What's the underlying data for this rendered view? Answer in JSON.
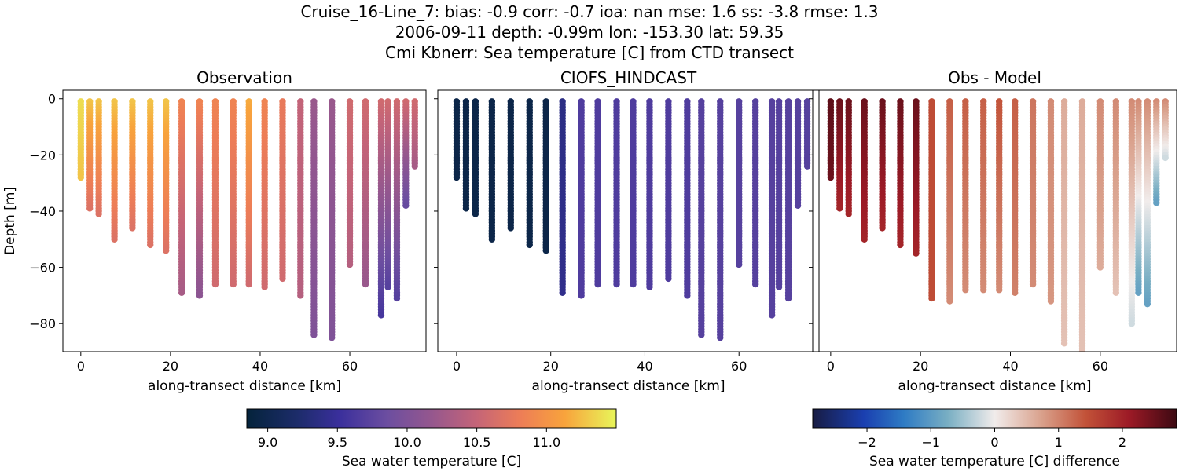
{
  "header": {
    "line1": "Cruise_16-Line_7: bias: -0.9  corr: -0.7  ioa: nan  mse: 1.6  ss: -3.8  rmse: 1.3",
    "line2": "2006-09-11 depth: -0.99m lon: -153.30 lat: 59.35",
    "line3": "Cmi Kbnerr: Sea temperature [C] from CTD transect"
  },
  "chart_data": [
    {
      "type": "scatter",
      "title": "Observation",
      "xlabel": "along-transect distance [km]",
      "ylabel": "Depth [m]",
      "xlim": [
        -4,
        77
      ],
      "ylim": [
        -90,
        3
      ],
      "xticks": [
        0,
        20,
        40,
        60
      ],
      "yticks": [
        0,
        -20,
        -40,
        -60,
        -80
      ],
      "colormap": "thermal",
      "color_range": [
        8.85,
        11.5
      ],
      "stations": [
        {
          "x": 0.0,
          "max_depth": -28,
          "t_top": 11.4,
          "t_bot": 11.3
        },
        {
          "x": 2.0,
          "max_depth": -39,
          "t_top": 11.3,
          "t_bot": 10.7
        },
        {
          "x": 4.0,
          "max_depth": -41,
          "t_top": 11.3,
          "t_bot": 10.7
        },
        {
          "x": 7.5,
          "max_depth": -50,
          "t_top": 11.3,
          "t_bot": 10.7
        },
        {
          "x": 11.5,
          "max_depth": -46,
          "t_top": 11.3,
          "t_bot": 10.7
        },
        {
          "x": 15.5,
          "max_depth": -52,
          "t_top": 11.3,
          "t_bot": 10.7
        },
        {
          "x": 19.0,
          "max_depth": -54,
          "t_top": 11.3,
          "t_bot": 10.7
        },
        {
          "x": 22.5,
          "max_depth": -69,
          "t_top": 10.9,
          "t_bot": 10.3
        },
        {
          "x": 26.5,
          "max_depth": -70,
          "t_top": 10.9,
          "t_bot": 10.1
        },
        {
          "x": 30.0,
          "max_depth": -66,
          "t_top": 10.9,
          "t_bot": 10.6
        },
        {
          "x": 34.0,
          "max_depth": -66,
          "t_top": 10.9,
          "t_bot": 10.6
        },
        {
          "x": 37.5,
          "max_depth": -66,
          "t_top": 11.2,
          "t_bot": 10.6
        },
        {
          "x": 41.0,
          "max_depth": -67,
          "t_top": 10.9,
          "t_bot": 10.6
        },
        {
          "x": 45.0,
          "max_depth": -64,
          "t_top": 10.8,
          "t_bot": 10.6
        },
        {
          "x": 49.0,
          "max_depth": -70,
          "t_top": 10.5,
          "t_bot": 10.4
        },
        {
          "x": 52.0,
          "max_depth": -84,
          "t_top": 10.2,
          "t_bot": 10.0
        },
        {
          "x": 56.0,
          "max_depth": -85,
          "t_top": 10.2,
          "t_bot": 10.0
        },
        {
          "x": 60.0,
          "max_depth": -59,
          "t_top": 10.6,
          "t_bot": 10.4
        },
        {
          "x": 63.5,
          "max_depth": -66,
          "t_top": 10.6,
          "t_bot": 10.2
        },
        {
          "x": 67.0,
          "max_depth": -77,
          "t_top": 10.6,
          "t_bot": 9.6
        },
        {
          "x": 68.5,
          "max_depth": -67,
          "t_top": 10.6,
          "t_bot": 9.7
        },
        {
          "x": 70.5,
          "max_depth": -71,
          "t_top": 10.6,
          "t_bot": 9.7
        },
        {
          "x": 72.5,
          "max_depth": -38,
          "t_top": 10.6,
          "t_bot": 9.8
        },
        {
          "x": 74.5,
          "max_depth": -24,
          "t_top": 10.6,
          "t_bot": 10.3
        }
      ]
    },
    {
      "type": "scatter",
      "title": "CIOFS_HINDCAST",
      "xlabel": "along-transect distance [km]",
      "xlim": [
        -4,
        77
      ],
      "ylim": [
        -90,
        3
      ],
      "xticks": [
        0,
        20,
        40,
        60
      ],
      "colormap": "thermal",
      "color_range": [
        8.85,
        11.5
      ],
      "stations": [
        {
          "x": 0.0,
          "max_depth": -28,
          "t_top": 8.95,
          "t_bot": 8.95
        },
        {
          "x": 2.0,
          "max_depth": -39,
          "t_top": 8.95,
          "t_bot": 8.95
        },
        {
          "x": 4.0,
          "max_depth": -41,
          "t_top": 8.95,
          "t_bot": 8.95
        },
        {
          "x": 7.5,
          "max_depth": -50,
          "t_top": 8.95,
          "t_bot": 8.95
        },
        {
          "x": 11.5,
          "max_depth": -46,
          "t_top": 8.95,
          "t_bot": 8.95
        },
        {
          "x": 15.5,
          "max_depth": -52,
          "t_top": 8.95,
          "t_bot": 8.95
        },
        {
          "x": 19.0,
          "max_depth": -54,
          "t_top": 8.95,
          "t_bot": 8.95
        },
        {
          "x": 22.5,
          "max_depth": -69,
          "t_top": 9.35,
          "t_bot": 9.4
        },
        {
          "x": 26.5,
          "max_depth": -70,
          "t_top": 9.65,
          "t_bot": 9.65
        },
        {
          "x": 30.0,
          "max_depth": -66,
          "t_top": 9.65,
          "t_bot": 9.65
        },
        {
          "x": 34.0,
          "max_depth": -66,
          "t_top": 9.65,
          "t_bot": 9.65
        },
        {
          "x": 37.5,
          "max_depth": -66,
          "t_top": 9.65,
          "t_bot": 9.65
        },
        {
          "x": 41.0,
          "max_depth": -67,
          "t_top": 9.65,
          "t_bot": 9.65
        },
        {
          "x": 45.0,
          "max_depth": -64,
          "t_top": 9.65,
          "t_bot": 9.65
        },
        {
          "x": 49.0,
          "max_depth": -70,
          "t_top": 9.65,
          "t_bot": 9.65
        },
        {
          "x": 52.0,
          "max_depth": -84,
          "t_top": 9.7,
          "t_bot": 9.7
        },
        {
          "x": 56.0,
          "max_depth": -85,
          "t_top": 9.7,
          "t_bot": 9.7
        },
        {
          "x": 60.0,
          "max_depth": -59,
          "t_top": 9.7,
          "t_bot": 9.7
        },
        {
          "x": 63.5,
          "max_depth": -66,
          "t_top": 9.7,
          "t_bot": 9.7
        },
        {
          "x": 67.0,
          "max_depth": -77,
          "t_top": 9.7,
          "t_bot": 9.7
        },
        {
          "x": 68.5,
          "max_depth": -67,
          "t_top": 9.7,
          "t_bot": 9.7
        },
        {
          "x": 70.5,
          "max_depth": -71,
          "t_top": 9.7,
          "t_bot": 9.7
        },
        {
          "x": 72.5,
          "max_depth": -38,
          "t_top": 9.7,
          "t_bot": 9.7
        },
        {
          "x": 74.5,
          "max_depth": -24,
          "t_top": 9.7,
          "t_bot": 9.7
        }
      ]
    },
    {
      "type": "scatter",
      "title": "Obs - Model",
      "xlabel": "along-transect distance [km]",
      "xlim": [
        -4,
        77
      ],
      "ylim": [
        -90,
        3
      ],
      "xticks": [
        0,
        20,
        40,
        60
      ],
      "colormap": "balance",
      "color_range": [
        -2.85,
        2.85
      ],
      "stations": [
        {
          "x": 0.0,
          "max_depth": -28,
          "t_top": 2.6,
          "t_bot": 2.5
        },
        {
          "x": 2.0,
          "max_depth": -39,
          "t_top": 2.5,
          "t_bot": 2.0
        },
        {
          "x": 4.0,
          "max_depth": -41,
          "t_top": 2.5,
          "t_bot": 2.0
        },
        {
          "x": 7.5,
          "max_depth": -50,
          "t_top": 2.5,
          "t_bot": 2.0
        },
        {
          "x": 11.5,
          "max_depth": -46,
          "t_top": 2.5,
          "t_bot": 2.0
        },
        {
          "x": 15.5,
          "max_depth": -52,
          "t_top": 2.5,
          "t_bot": 2.0
        },
        {
          "x": 19.0,
          "max_depth": -55,
          "t_top": 2.5,
          "t_bot": 2.0
        },
        {
          "x": 22.5,
          "max_depth": -71,
          "t_top": 1.5,
          "t_bot": 1.5
        },
        {
          "x": 26.5,
          "max_depth": -72,
          "t_top": 1.3,
          "t_bot": 0.9
        },
        {
          "x": 30.0,
          "max_depth": -68,
          "t_top": 1.3,
          "t_bot": 0.9
        },
        {
          "x": 34.0,
          "max_depth": -68,
          "t_top": 1.3,
          "t_bot": 0.9
        },
        {
          "x": 37.5,
          "max_depth": -68,
          "t_top": 1.4,
          "t_bot": 0.9
        },
        {
          "x": 41.0,
          "max_depth": -69,
          "t_top": 1.3,
          "t_bot": 1.0
        },
        {
          "x": 45.0,
          "max_depth": -66,
          "t_top": 1.1,
          "t_bot": 0.9
        },
        {
          "x": 49.0,
          "max_depth": -72,
          "t_top": 0.9,
          "t_bot": 0.8
        },
        {
          "x": 52.0,
          "max_depth": -87,
          "t_top": 0.6,
          "t_bot": 0.4
        },
        {
          "x": 56.0,
          "max_depth": -90,
          "t_top": 0.6,
          "t_bot": 0.4
        },
        {
          "x": 60.0,
          "max_depth": -60,
          "t_top": 0.9,
          "t_bot": 0.6
        },
        {
          "x": 63.5,
          "max_depth": -69,
          "t_top": 0.9,
          "t_bot": 0.4
        },
        {
          "x": 67.0,
          "max_depth": -80,
          "t_top": 0.9,
          "t_bot": -0.2
        },
        {
          "x": 68.5,
          "max_depth": -69,
          "t_top": 0.9,
          "t_bot": -0.9
        },
        {
          "x": 70.5,
          "max_depth": -73,
          "t_top": 0.9,
          "t_bot": -0.9
        },
        {
          "x": 72.5,
          "max_depth": -37,
          "t_top": 0.9,
          "t_bot": -0.9
        },
        {
          "x": 74.5,
          "max_depth": -21,
          "t_top": 0.9,
          "t_bot": -0.2
        }
      ]
    }
  ],
  "colorbars": [
    {
      "label": "Sea water temperature [C]",
      "colormap": "thermal",
      "range": [
        8.85,
        11.5
      ],
      "ticks": [
        9.0,
        9.5,
        10.0,
        10.5,
        11.0
      ],
      "tick_labels": [
        "9.0",
        "9.5",
        "10.0",
        "10.5",
        "11.0"
      ]
    },
    {
      "label": "Sea water temperature [C] difference",
      "colormap": "balance",
      "range": [
        -2.85,
        2.85
      ],
      "ticks": [
        -2,
        -1,
        0,
        1,
        2
      ],
      "tick_labels": [
        "−2",
        "−1",
        "0",
        "1",
        "2"
      ]
    }
  ],
  "axis_tick_labels": {
    "x": [
      "0",
      "20",
      "40",
      "60"
    ],
    "y": [
      "0",
      "−20",
      "−40",
      "−60",
      "−80"
    ]
  }
}
